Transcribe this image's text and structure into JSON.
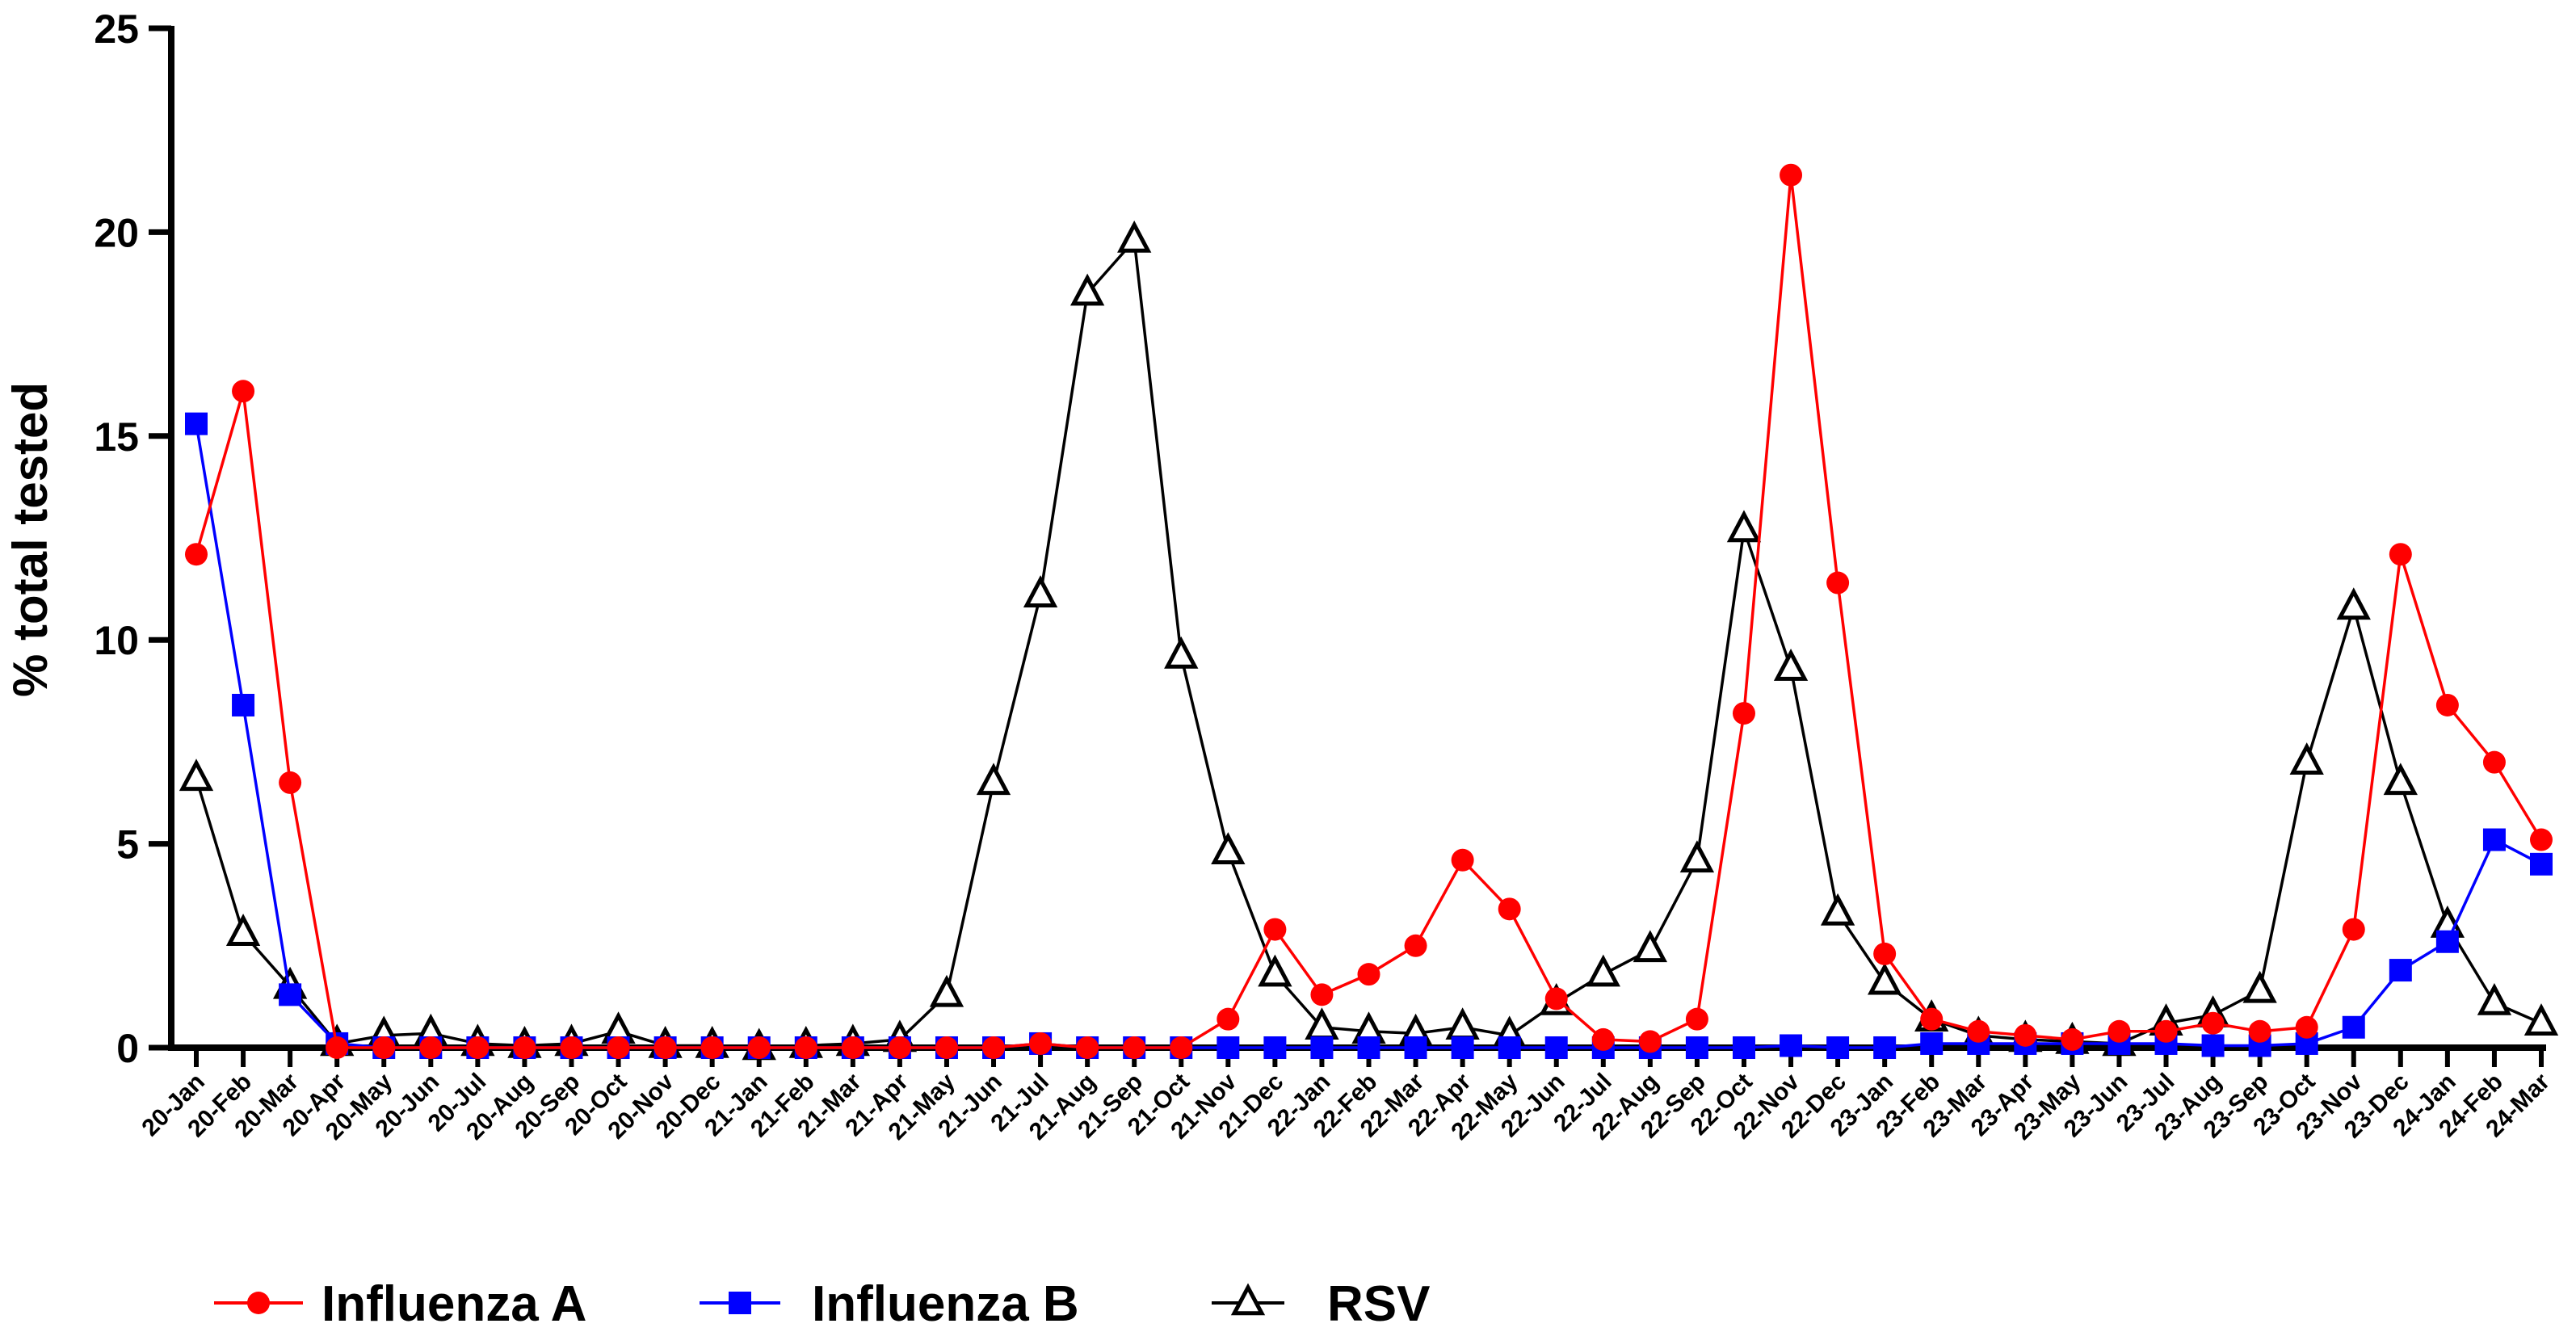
{
  "chart_data": {
    "type": "line",
    "ylabel": "% total tested",
    "ylim": [
      0,
      25
    ],
    "yticks": [
      0,
      5,
      10,
      15,
      20,
      25
    ],
    "categories": [
      "20-Jan",
      "20-Feb",
      "20-Mar",
      "20-Apr",
      "20-May",
      "20-Jun",
      "20-Jul",
      "20-Aug",
      "20-Sep",
      "20-Oct",
      "20-Nov",
      "20-Dec",
      "21-Jan",
      "21-Feb",
      "21-Mar",
      "21-Apr",
      "21-May",
      "21-Jun",
      "21-Jul",
      "21-Aug",
      "21-Sep",
      "21-Oct",
      "21-Nov",
      "21-Dec",
      "22-Jan",
      "22-Feb",
      "22-Mar",
      "22-Apr",
      "22-May",
      "22-Jun",
      "22-Jul",
      "22-Aug",
      "22-Sep",
      "22-Oct",
      "22-Nov",
      "22-Dec",
      "23-Jan",
      "23-Feb",
      "23-Mar",
      "23-Apr",
      "23-May",
      "23-Jun",
      "23-Jul",
      "23-Aug",
      "23-Sep",
      "23-Oct",
      "23-Nov",
      "23-Dec",
      "24-Jan",
      "24-Feb",
      "24-Mar"
    ],
    "grid": false,
    "legend_position": "bottom",
    "series": [
      {
        "name": "Influenza A",
        "color": "#ff0000",
        "marker": "circle",
        "values": [
          12.1,
          16.1,
          6.5,
          0,
          0,
          0,
          0,
          0,
          0,
          0,
          0,
          0,
          0,
          0,
          0,
          0,
          0,
          0,
          0.1,
          0,
          0,
          0,
          0.7,
          2.9,
          1.3,
          1.8,
          2.5,
          4.6,
          3.4,
          1.2,
          0.2,
          0.15,
          0.7,
          8.2,
          21.4,
          11.4,
          2.3,
          0.7,
          0.4,
          0.3,
          0.2,
          0.4,
          0.4,
          0.6,
          0.4,
          0.5,
          2.9,
          12.1,
          8.4,
          7.0,
          5.1
        ]
      },
      {
        "name": "Influenza B",
        "color": "#0000ff",
        "marker": "square",
        "values": [
          15.3,
          8.4,
          1.3,
          0.1,
          0,
          0,
          0,
          0,
          0,
          0,
          0,
          0,
          0,
          0,
          0,
          0,
          0,
          0,
          0.1,
          0,
          0,
          0,
          0,
          0,
          0,
          0,
          0,
          0,
          0,
          0,
          0,
          0,
          0,
          0,
          0.05,
          0,
          0,
          0.1,
          0.1,
          0.1,
          0.1,
          0.1,
          0.1,
          0.05,
          0.05,
          0.1,
          0.5,
          1.9,
          2.6,
          5.1,
          4.5
        ]
      },
      {
        "name": "RSV",
        "color": "#000000",
        "marker": "triangle",
        "values": [
          6.6,
          2.8,
          1.5,
          0.1,
          0.3,
          0.35,
          0.1,
          0.05,
          0.1,
          0.4,
          0.05,
          0.05,
          0,
          0.05,
          0.1,
          0.2,
          1.3,
          6.5,
          11.1,
          18.5,
          19.8,
          9.6,
          4.8,
          1.8,
          0.5,
          0.4,
          0.35,
          0.5,
          0.3,
          1.1,
          1.8,
          2.4,
          4.6,
          12.7,
          9.3,
          3.3,
          1.6,
          0.7,
          0.3,
          0.2,
          0.15,
          0.1,
          0.6,
          0.8,
          1.4,
          7.0,
          10.8,
          6.5,
          3.0,
          1.1,
          0.6
        ]
      }
    ]
  }
}
